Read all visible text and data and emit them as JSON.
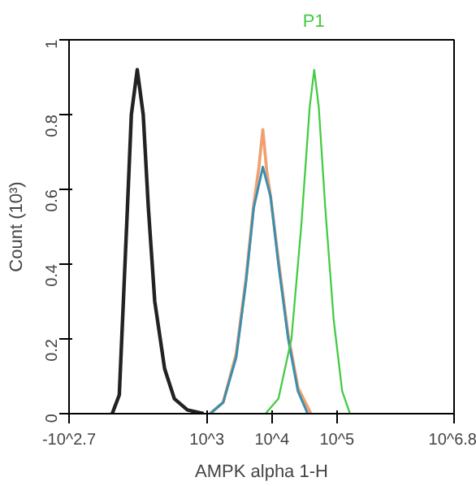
{
  "chart_data": {
    "type": "line",
    "xlabel": "AMPK alpha 1-H",
    "ylabel": "Count (10³)",
    "log": "x",
    "xlim": [
      7.6,
      6309573
    ],
    "xticks": [
      {
        "value": 7.6,
        "label": "-10^2.7"
      },
      {
        "value": 1000,
        "label": "10^3"
      },
      {
        "value": 10000,
        "label": "10^4"
      },
      {
        "value": 100000,
        "label": "10^5"
      },
      {
        "value": 6309573,
        "label": "10^6.8"
      }
    ],
    "ylim": [
      0,
      1
    ],
    "yticks": [
      {
        "value": 0,
        "label": "0"
      },
      {
        "value": 0.2,
        "label": "0.2"
      },
      {
        "value": 0.4,
        "label": "0.4"
      },
      {
        "value": 0.6,
        "label": "0.6"
      },
      {
        "value": 0.8,
        "label": "0.8"
      },
      {
        "value": 1,
        "label": "1"
      }
    ],
    "grid": false,
    "line_style": "solid",
    "series": [
      {
        "color": "#222222",
        "x": [
          35,
          45,
          52,
          60,
          69,
          85,
          105,
          126,
          158,
          224,
          316,
          501,
          891
        ],
        "values": [
          0,
          0.05,
          0.3,
          0.55,
          0.8,
          0.92,
          0.8,
          0.55,
          0.3,
          0.12,
          0.04,
          0.01,
          0
        ]
      },
      {
        "color": "#f0a070",
        "x": [
          1122,
          1778,
          2818,
          3981,
          5248,
          6310,
          7244,
          8318,
          9550,
          12589,
          17783,
          25119,
          39811
        ],
        "values": [
          0,
          0.03,
          0.16,
          0.36,
          0.56,
          0.66,
          0.76,
          0.65,
          0.58,
          0.41,
          0.21,
          0.07,
          0
        ]
      },
      {
        "color": "#3a8fb0",
        "x": [
          1122,
          1778,
          2818,
          3981,
          5248,
          7244,
          9550,
          12589,
          17783,
          25119,
          35481
        ],
        "values": [
          0,
          0.03,
          0.15,
          0.35,
          0.55,
          0.66,
          0.58,
          0.4,
          0.2,
          0.06,
          0
        ]
      },
      {
        "name": "P1",
        "color": "#44cc44",
        "x": [
          7943,
          12589,
          19953,
          28184,
          38019,
          44668,
          52481,
          66069,
          89125,
          120226,
          158489
        ],
        "values": [
          0,
          0.04,
          0.2,
          0.5,
          0.82,
          0.92,
          0.82,
          0.55,
          0.25,
          0.06,
          0
        ]
      }
    ]
  }
}
